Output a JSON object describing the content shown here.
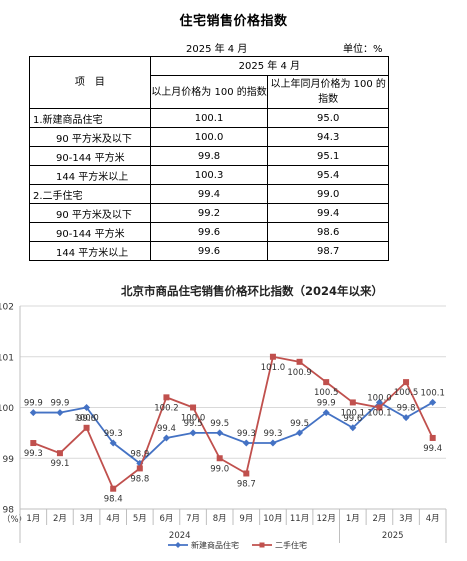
{
  "title": "住宅销售价格指数",
  "period_label": "2025 年 4 月",
  "unit_label": "单位：%",
  "table": {
    "item_header": "项　目",
    "group_header": "2025 年 4 月",
    "col1_header": "以上月价格为 100 的指数",
    "col2_header": "以上年同月价格为 100 的指数",
    "rows": [
      {
        "label": "1.新建商品住宅",
        "mom": "100.1",
        "yoy": "95.0"
      },
      {
        "label": "90 平方米及以下",
        "mom": "100.0",
        "yoy": "94.3"
      },
      {
        "label": "90-144 平方米",
        "mom": "99.8",
        "yoy": "95.1"
      },
      {
        "label": "144 平方米以上",
        "mom": "100.3",
        "yoy": "95.4"
      },
      {
        "label": "2.二手住宅",
        "mom": "99.4",
        "yoy": "99.0"
      },
      {
        "label": "90 平方米及以下",
        "mom": "99.2",
        "yoy": "99.4"
      },
      {
        "label": "90-144 平方米",
        "mom": "99.6",
        "yoy": "98.6"
      },
      {
        "label": "144 平方米以上",
        "mom": "99.6",
        "yoy": "98.7"
      }
    ]
  },
  "chart_data": {
    "type": "line",
    "title": "北京市商品住宅销售价格环比指数（2024年以来）",
    "categories": [
      "1月",
      "2月",
      "3月",
      "4月",
      "5月",
      "6月",
      "7月",
      "8月",
      "9月",
      "10月",
      "11月",
      "12月",
      "1月",
      "2月",
      "3月",
      "4月"
    ],
    "year_groups": [
      {
        "label": "2024",
        "count": 12
      },
      {
        "label": "2025",
        "count": 4
      }
    ],
    "yticks": [
      "98",
      "99",
      "100",
      "101",
      "102"
    ],
    "ylim": [
      98,
      102
    ],
    "unit": "（%）",
    "grid": true,
    "legend_position": "bottom",
    "series": [
      {
        "name": "新建商品住宅",
        "color": "#4472C4",
        "marker": "diamond",
        "values": [
          99.9,
          99.9,
          100.0,
          99.3,
          98.9,
          99.4,
          99.5,
          99.5,
          99.3,
          99.3,
          99.5,
          99.9,
          99.6,
          100.1,
          99.8,
          100.1
        ]
      },
      {
        "name": "二手住宅",
        "color": "#C0504D",
        "marker": "square",
        "values": [
          99.3,
          99.1,
          99.6,
          98.4,
          98.8,
          100.2,
          100.0,
          99.0,
          98.7,
          101.0,
          100.9,
          100.5,
          100.1,
          100.0,
          100.5,
          99.4
        ]
      }
    ]
  }
}
